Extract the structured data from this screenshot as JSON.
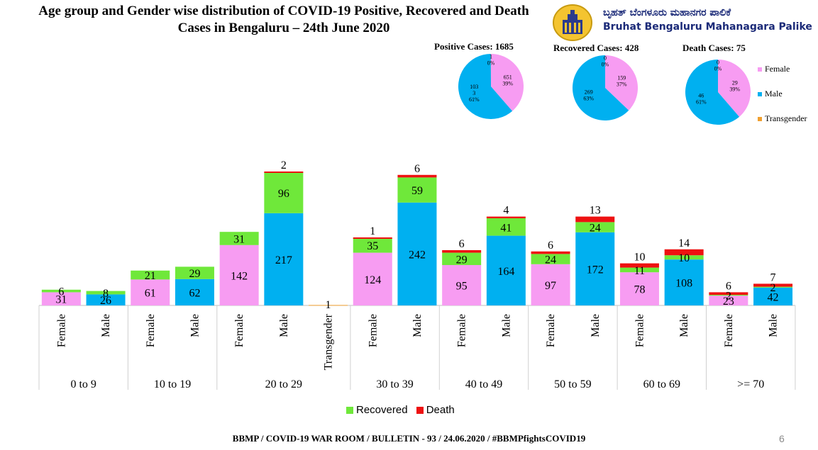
{
  "header": {
    "title_line1": "Age group and Gender wise distribution of COVID-19 Positive, Recovered and Death",
    "title_line2": "Cases in Bengaluru – 24th June 2020",
    "org_kannada": "ಬೃಹತ್ ಬೆಂಗಳೂರು ಮಹಾನಗರ ಪಾಲಿಕೆ",
    "org_english": "Bruhat Bengaluru Mahanagara Palike"
  },
  "footer": {
    "bulletin": "BBMP / COVID-19 WAR ROOM / BULLETIN - 93 / 24.06.2020 / #BBMPfightsCOVID19",
    "page_number": "6"
  },
  "colors": {
    "female": "#f79cf2",
    "male": "#00b0f0",
    "transgender": "#f0a030",
    "recovered": "#6fe83a",
    "death": "#ee1111"
  },
  "legend": {
    "recovered": "Recovered",
    "death": "Death"
  },
  "pie_legend": [
    "Female",
    "Male",
    "Transgender"
  ],
  "chart_data": [
    {
      "type": "bar",
      "stacked": true,
      "group_labels": [
        "0 to 9",
        "10 to 19",
        "20 to 29",
        "30 to 39",
        "40 to 49",
        "50 to 59",
        "60 to 69",
        ">= 70"
      ],
      "bars": [
        {
          "group": "0 to 9",
          "gender": "Female",
          "positive": 31,
          "recovered": 6,
          "death": 0
        },
        {
          "group": "0 to 9",
          "gender": "Male",
          "positive": 26,
          "recovered": 8,
          "death": 0
        },
        {
          "group": "10 to 19",
          "gender": "Female",
          "positive": 61,
          "recovered": 21,
          "death": 0
        },
        {
          "group": "10 to 19",
          "gender": "Male",
          "positive": 62,
          "recovered": 29,
          "death": 0
        },
        {
          "group": "20 to 29",
          "gender": "Female",
          "positive": 142,
          "recovered": 31,
          "death": 0
        },
        {
          "group": "20 to 29",
          "gender": "Male",
          "positive": 217,
          "recovered": 96,
          "death": 2
        },
        {
          "group": "20 to 29",
          "gender": "Transgender",
          "positive": 1,
          "recovered": 0,
          "death": 0
        },
        {
          "group": "30 to 39",
          "gender": "Female",
          "positive": 124,
          "recovered": 35,
          "death": 1
        },
        {
          "group": "30 to 39",
          "gender": "Male",
          "positive": 242,
          "recovered": 59,
          "death": 6
        },
        {
          "group": "40 to 49",
          "gender": "Female",
          "positive": 95,
          "recovered": 29,
          "death": 6
        },
        {
          "group": "40 to 49",
          "gender": "Male",
          "positive": 164,
          "recovered": 41,
          "death": 4
        },
        {
          "group": "50 to 59",
          "gender": "Female",
          "positive": 97,
          "recovered": 24,
          "death": 6
        },
        {
          "group": "50 to 59",
          "gender": "Male",
          "positive": 172,
          "recovered": 24,
          "death": 13
        },
        {
          "group": "60 to 69",
          "gender": "Female",
          "positive": 78,
          "recovered": 11,
          "death": 10
        },
        {
          "group": "60 to 69",
          "gender": "Male",
          "positive": 108,
          "recovered": 10,
          "death": 14
        },
        {
          "group": ">= 70",
          "gender": "Female",
          "positive": 23,
          "recovered": 2,
          "death": 6
        },
        {
          "group": ">= 70",
          "gender": "Male",
          "positive": 42,
          "recovered": 2,
          "death": 7
        }
      ],
      "series": [
        {
          "name": "Recovered"
        },
        {
          "name": "Death"
        }
      ]
    },
    {
      "type": "pie",
      "title": "Positive Cases: 1685",
      "slices": [
        {
          "label": "Female",
          "value": 651,
          "text": "651",
          "pct_text": "39%"
        },
        {
          "label": "Male",
          "value": 1033,
          "text": "103\n3",
          "pct_text": "61%"
        },
        {
          "label": "Transgender",
          "value": 1,
          "text": "1",
          "pct_text": "0%"
        }
      ]
    },
    {
      "type": "pie",
      "title": "Recovered Cases: 428",
      "slices": [
        {
          "label": "Female",
          "value": 159,
          "text": "159",
          "pct_text": "37%"
        },
        {
          "label": "Male",
          "value": 269,
          "text": "269",
          "pct_text": "63%"
        },
        {
          "label": "Transgender",
          "value": 0,
          "text": "0",
          "pct_text": "0%"
        }
      ]
    },
    {
      "type": "pie",
      "title": "Death Cases: 75",
      "slices": [
        {
          "label": "Female",
          "value": 29,
          "text": "29",
          "pct_text": "39%"
        },
        {
          "label": "Male",
          "value": 46,
          "text": "46",
          "pct_text": "61%"
        },
        {
          "label": "Transgender",
          "value": 0,
          "text": "0",
          "pct_text": "0%"
        }
      ]
    }
  ]
}
